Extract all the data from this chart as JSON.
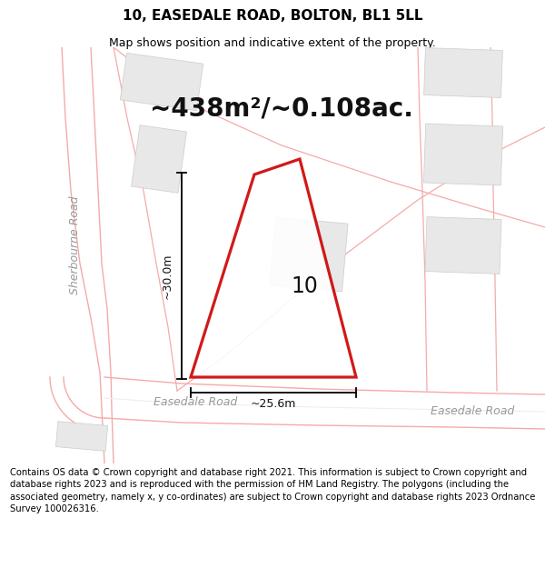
{
  "title": "10, EASEDALE ROAD, BOLTON, BL1 5LL",
  "subtitle": "Map shows position and indicative extent of the property.",
  "area_text": "~438m²/~0.108ac.",
  "label_number": "10",
  "dim_vertical": "~30.0m",
  "dim_horizontal": "~25.6m",
  "road_label_left": "Easedale Road",
  "road_label_right": "Easedale Road",
  "sherbourne_label": "Sherbourne Road",
  "footer_text": "Contains OS data © Crown copyright and database right 2021. This information is subject to Crown copyright and database rights 2023 and is reproduced with the permission of HM Land Registry. The polygons (including the associated geometry, namely x, y co-ordinates) are subject to Crown copyright and database rights 2023 Ordnance Survey 100026316.",
  "bg_color": "#ffffff",
  "map_bg": "#f7f7f7",
  "building_color": "#e8e8e8",
  "building_ec": "#cccccc",
  "plot_line_color": "#cc0000",
  "road_line_color": "#f5aaaa",
  "road_divider_color": "#eeeeee",
  "title_fontsize": 11,
  "subtitle_fontsize": 9,
  "area_fontsize": 20,
  "label_fontsize": 17,
  "dim_fontsize": 9,
  "road_fontsize": 9,
  "footer_fontsize": 7.2,
  "sherbourne_fontsize": 9
}
